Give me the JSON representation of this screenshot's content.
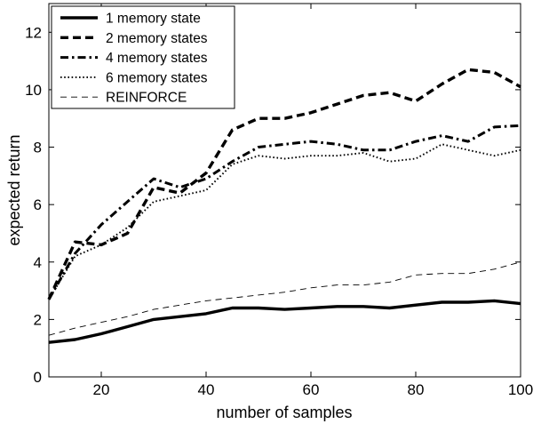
{
  "chart_data": {
    "type": "line",
    "title": "",
    "xlabel": "number of samples",
    "ylabel": "expected return",
    "xlim": [
      10,
      100
    ],
    "ylim": [
      0,
      13
    ],
    "xticks": [
      20,
      40,
      60,
      80,
      100
    ],
    "yticks": [
      0,
      2,
      4,
      6,
      8,
      10,
      12
    ],
    "grid": false,
    "legend_position": "top-left",
    "x": [
      10,
      15,
      20,
      25,
      30,
      35,
      40,
      45,
      50,
      55,
      60,
      65,
      70,
      75,
      80,
      85,
      90,
      95,
      100
    ],
    "series": [
      {
        "name": "1 memory state",
        "style": "solid-thick",
        "values": [
          1.2,
          1.3,
          1.5,
          1.75,
          2.0,
          2.1,
          2.2,
          2.4,
          2.4,
          2.35,
          2.4,
          2.45,
          2.45,
          2.4,
          2.5,
          2.6,
          2.6,
          2.65,
          2.55
        ]
      },
      {
        "name": "2 memory states",
        "style": "dashed-thick",
        "values": [
          2.7,
          4.7,
          4.6,
          5.0,
          6.6,
          6.4,
          7.1,
          8.6,
          9.0,
          9.0,
          9.2,
          9.5,
          9.8,
          9.9,
          9.6,
          10.2,
          10.7,
          10.6,
          10.1
        ]
      },
      {
        "name": "4 memory states",
        "style": "dashdot-thick",
        "values": [
          2.7,
          4.3,
          5.3,
          6.1,
          6.9,
          6.6,
          6.9,
          7.5,
          8.0,
          8.1,
          8.2,
          8.1,
          7.9,
          7.9,
          8.2,
          8.4,
          8.2,
          8.7,
          8.75
        ]
      },
      {
        "name": "6 memory states",
        "style": "dotted",
        "values": [
          2.7,
          4.2,
          4.6,
          5.2,
          6.1,
          6.3,
          6.5,
          7.4,
          7.7,
          7.6,
          7.7,
          7.7,
          7.8,
          7.5,
          7.6,
          8.1,
          7.9,
          7.7,
          7.9
        ]
      },
      {
        "name": "REINFORCE",
        "style": "dashed-thin",
        "values": [
          1.45,
          1.7,
          1.9,
          2.1,
          2.35,
          2.5,
          2.65,
          2.75,
          2.85,
          2.95,
          3.1,
          3.2,
          3.2,
          3.3,
          3.55,
          3.6,
          3.6,
          3.75,
          4.0
        ]
      }
    ]
  }
}
